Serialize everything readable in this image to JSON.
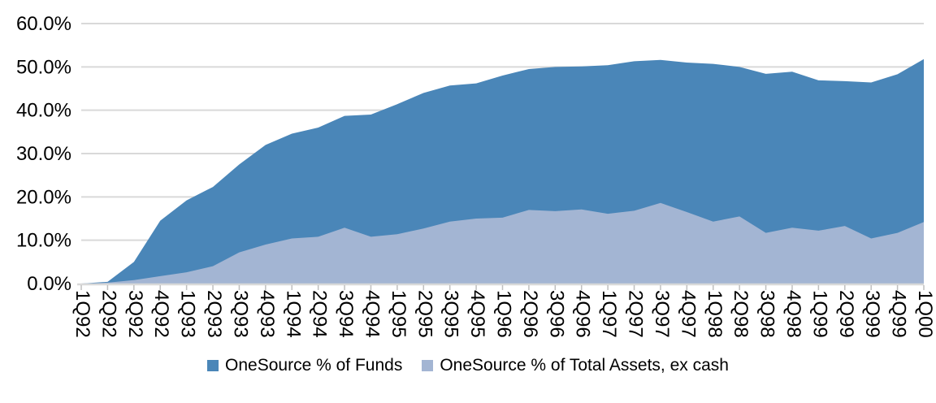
{
  "chart_data": {
    "type": "area",
    "title": "",
    "xlabel": "",
    "ylabel": "",
    "ylim": [
      0,
      60
    ],
    "y_tick_step": 10,
    "y_tick_labels": [
      "0.0%",
      "10.0%",
      "20.0%",
      "30.0%",
      "40.0%",
      "50.0%",
      "60.0%"
    ],
    "grid": "horizontal-only",
    "legend_position": "bottom-center",
    "axis_color": "#d9d9d9",
    "tick_color": "#bfbfbf",
    "text_color": "#000000",
    "categories": [
      "1Q92",
      "2Q92",
      "3Q92",
      "4Q92",
      "1Q93",
      "2Q93",
      "3Q93",
      "4Q93",
      "1Q94",
      "2Q94",
      "3Q94",
      "4Q94",
      "1Q95",
      "2Q95",
      "3Q95",
      "4Q95",
      "1Q96",
      "2Q96",
      "3Q96",
      "4Q96",
      "1Q97",
      "2Q97",
      "3Q97",
      "4Q97",
      "1Q98",
      "2Q98",
      "3Q98",
      "4Q98",
      "1Q99",
      "2Q99",
      "3Q99",
      "4Q99",
      "1Q00"
    ],
    "series": [
      {
        "name": "OneSource % of Funds",
        "color": "#4a86b8",
        "values": [
          0.0,
          0.4,
          5.0,
          14.5,
          19.2,
          22.3,
          27.5,
          32.0,
          34.6,
          36.0,
          38.7,
          39.0,
          41.4,
          44.0,
          45.7,
          46.2,
          48.0,
          49.5,
          50.0,
          50.1,
          50.4,
          51.3,
          51.6,
          51.0,
          50.7,
          50.0,
          48.4,
          48.9,
          46.9,
          46.7,
          46.4,
          48.3,
          51.8
        ]
      },
      {
        "name": "OneSource % of Total Assets, ex cash",
        "color": "#a3b5d3",
        "values": [
          0.0,
          0.2,
          0.8,
          1.7,
          2.6,
          4.0,
          7.2,
          9.0,
          10.4,
          10.8,
          12.9,
          10.8,
          11.4,
          12.7,
          14.3,
          15.0,
          15.2,
          17.0,
          16.7,
          17.1,
          16.1,
          16.8,
          18.6,
          16.5,
          14.3,
          15.5,
          11.7,
          12.9,
          12.2,
          13.3,
          10.4,
          11.7,
          14.2
        ]
      }
    ]
  }
}
